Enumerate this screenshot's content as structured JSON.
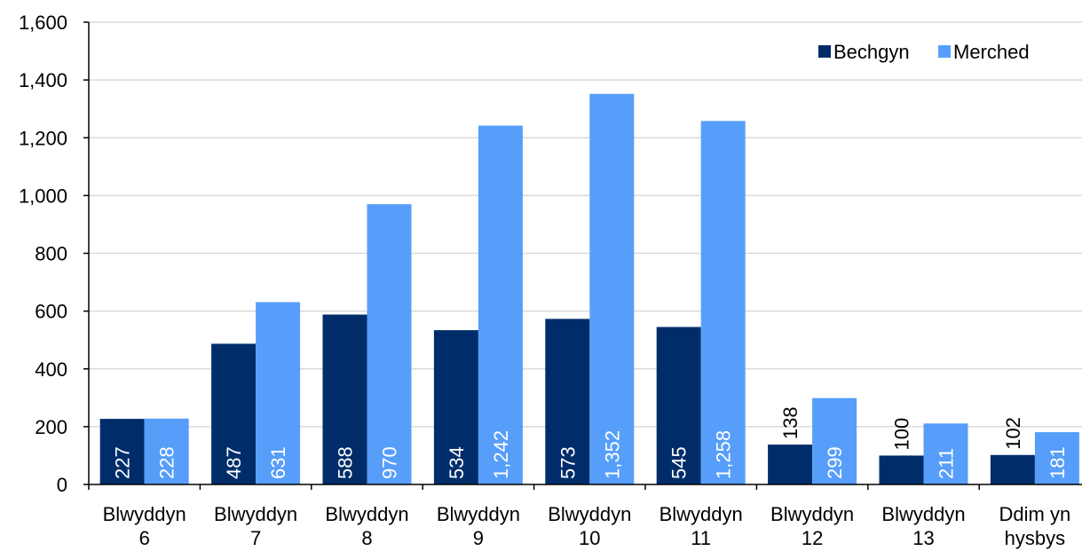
{
  "chart_data": {
    "type": "bar",
    "categories": [
      [
        "Blwyddyn",
        "6"
      ],
      [
        "Blwyddyn",
        "7"
      ],
      [
        "Blwyddyn",
        "8"
      ],
      [
        "Blwyddyn",
        "9"
      ],
      [
        "Blwyddyn",
        "10"
      ],
      [
        "Blwyddyn",
        "11"
      ],
      [
        "Blwyddyn",
        "12"
      ],
      [
        "Blwyddyn",
        "13"
      ],
      [
        "Ddim yn",
        "hysbys"
      ]
    ],
    "series": [
      {
        "name": "Bechgyn",
        "values": [
          227,
          487,
          588,
          534,
          573,
          545,
          138,
          100,
          102
        ],
        "labels": [
          "227",
          "487",
          "588",
          "534",
          "573",
          "545",
          "138",
          "100",
          "102"
        ]
      },
      {
        "name": "Merched",
        "values": [
          228,
          631,
          970,
          1242,
          1352,
          1258,
          299,
          211,
          181
        ],
        "labels": [
          "228",
          "631",
          "970",
          "1,242",
          "1,352",
          "1,258",
          "299",
          "211",
          "181"
        ]
      }
    ],
    "y_ticks": [
      {
        "value": 0,
        "label": "0"
      },
      {
        "value": 200,
        "label": "200"
      },
      {
        "value": 400,
        "label": "400"
      },
      {
        "value": 600,
        "label": "600"
      },
      {
        "value": 800,
        "label": "800"
      },
      {
        "value": 1000,
        "label": "1,000"
      },
      {
        "value": 1200,
        "label": "1,200"
      },
      {
        "value": 1400,
        "label": "1,400"
      },
      {
        "value": 1600,
        "label": "1,600"
      }
    ],
    "ylim": [
      0,
      1600
    ],
    "grid": true,
    "legend_position": "top-right",
    "colors": {
      "Bechgyn": "#002d6a",
      "Merched": "#579efa",
      "grid": "#d9d9d9",
      "axis": "#000000"
    }
  }
}
